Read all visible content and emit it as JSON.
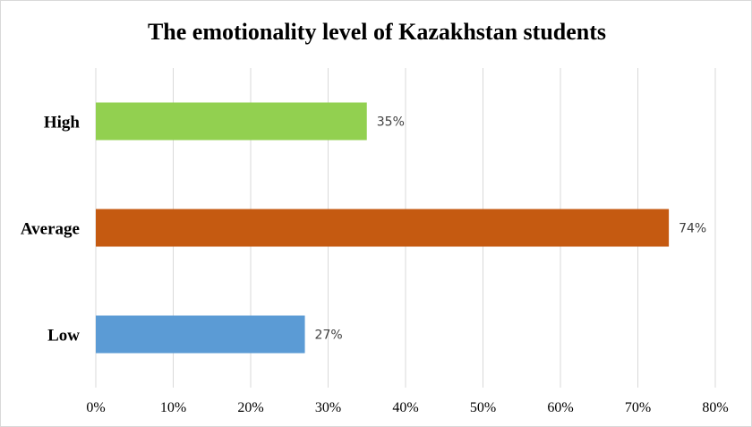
{
  "chart_data": {
    "type": "bar",
    "orientation": "horizontal",
    "title": "The emotionality level of Kazakhstan students",
    "categories": [
      "High",
      "Average",
      "Low"
    ],
    "values": [
      35,
      74,
      27
    ],
    "value_labels": [
      "35%",
      "74%",
      "27%"
    ],
    "colors": [
      "#92d050",
      "#c55a11",
      "#5b9bd5"
    ],
    "xlim": [
      0,
      80
    ],
    "x_ticks": [
      0,
      10,
      20,
      30,
      40,
      50,
      60,
      70,
      80
    ],
    "x_tick_labels": [
      "0%",
      "10%",
      "20%",
      "30%",
      "40%",
      "50%",
      "60%",
      "70%",
      "80%"
    ],
    "grid": true,
    "legend": "none"
  }
}
